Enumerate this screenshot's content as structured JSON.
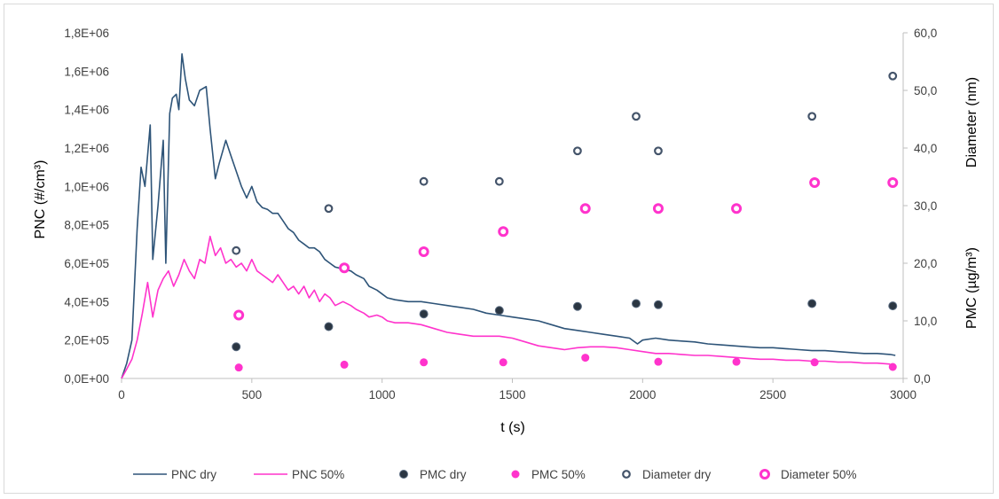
{
  "chart_data": {
    "type": "line",
    "xlabel": "t (s)",
    "ylabel": "PNC (#/cm³)",
    "y2label_top": "Diameter (nm)",
    "y2label_bottom": "PMC (µg/m³)",
    "xlim": [
      0,
      3000
    ],
    "ylim": [
      0,
      1800000
    ],
    "y2lim": [
      0,
      60
    ],
    "x_ticks": [
      "0",
      "500",
      "1000",
      "1500",
      "2000",
      "2500",
      "3000"
    ],
    "y_ticks": [
      "0,0E+00",
      "2,0E+05",
      "4,0E+05",
      "6,0E+05",
      "8,0E+05",
      "1,0E+06",
      "1,2E+06",
      "1,4E+06",
      "1,6E+06",
      "1,8E+06"
    ],
    "y2_ticks": [
      "0,0",
      "10,0",
      "20,0",
      "30,0",
      "40,0",
      "50,0",
      "60,0"
    ],
    "grid": false,
    "legend_position": "bottom",
    "colors": {
      "pnc_dry": "#2e5478",
      "pnc_50": "#ff33cc",
      "pmc_dry_fill": "#2b3642",
      "pmc_50_fill": "#ff33cc",
      "diam_dry_stroke": "#44546a",
      "diam_50_stroke": "#ff33cc"
    },
    "series": [
      {
        "name": "PNC dry",
        "kind": "line",
        "axis": "left",
        "points": [
          [
            0,
            0
          ],
          [
            20,
            80000
          ],
          [
            40,
            200000
          ],
          [
            60,
            780000
          ],
          [
            75,
            1100000
          ],
          [
            90,
            1000000
          ],
          [
            110,
            1320000
          ],
          [
            120,
            620000
          ],
          [
            140,
            900000
          ],
          [
            160,
            1240000
          ],
          [
            170,
            600000
          ],
          [
            185,
            1380000
          ],
          [
            195,
            1460000
          ],
          [
            210,
            1480000
          ],
          [
            220,
            1400000
          ],
          [
            232,
            1690000
          ],
          [
            245,
            1560000
          ],
          [
            260,
            1450000
          ],
          [
            280,
            1420000
          ],
          [
            300,
            1500000
          ],
          [
            325,
            1520000
          ],
          [
            340,
            1300000
          ],
          [
            360,
            1040000
          ],
          [
            375,
            1120000
          ],
          [
            400,
            1240000
          ],
          [
            420,
            1160000
          ],
          [
            440,
            1080000
          ],
          [
            460,
            1000000
          ],
          [
            480,
            940000
          ],
          [
            500,
            1000000
          ],
          [
            520,
            920000
          ],
          [
            540,
            890000
          ],
          [
            560,
            880000
          ],
          [
            580,
            860000
          ],
          [
            600,
            860000
          ],
          [
            620,
            820000
          ],
          [
            640,
            780000
          ],
          [
            660,
            760000
          ],
          [
            680,
            720000
          ],
          [
            700,
            700000
          ],
          [
            720,
            680000
          ],
          [
            740,
            680000
          ],
          [
            760,
            660000
          ],
          [
            780,
            620000
          ],
          [
            800,
            600000
          ],
          [
            820,
            580000
          ],
          [
            850,
            570000
          ],
          [
            880,
            560000
          ],
          [
            900,
            540000
          ],
          [
            930,
            520000
          ],
          [
            950,
            480000
          ],
          [
            980,
            460000
          ],
          [
            1000,
            440000
          ],
          [
            1020,
            420000
          ],
          [
            1050,
            410000
          ],
          [
            1100,
            400000
          ],
          [
            1150,
            400000
          ],
          [
            1200,
            390000
          ],
          [
            1250,
            380000
          ],
          [
            1300,
            370000
          ],
          [
            1350,
            360000
          ],
          [
            1400,
            340000
          ],
          [
            1450,
            330000
          ],
          [
            1500,
            320000
          ],
          [
            1550,
            310000
          ],
          [
            1600,
            300000
          ],
          [
            1650,
            280000
          ],
          [
            1700,
            260000
          ],
          [
            1750,
            250000
          ],
          [
            1800,
            240000
          ],
          [
            1850,
            230000
          ],
          [
            1900,
            220000
          ],
          [
            1950,
            210000
          ],
          [
            1980,
            180000
          ],
          [
            2000,
            200000
          ],
          [
            2050,
            210000
          ],
          [
            2100,
            200000
          ],
          [
            2150,
            195000
          ],
          [
            2200,
            190000
          ],
          [
            2250,
            180000
          ],
          [
            2300,
            175000
          ],
          [
            2350,
            170000
          ],
          [
            2400,
            165000
          ],
          [
            2450,
            160000
          ],
          [
            2500,
            160000
          ],
          [
            2550,
            155000
          ],
          [
            2600,
            150000
          ],
          [
            2650,
            145000
          ],
          [
            2700,
            145000
          ],
          [
            2750,
            140000
          ],
          [
            2800,
            135000
          ],
          [
            2850,
            130000
          ],
          [
            2900,
            130000
          ],
          [
            2950,
            125000
          ],
          [
            2970,
            120000
          ]
        ]
      },
      {
        "name": "PNC 50%",
        "kind": "line",
        "axis": "left",
        "points": [
          [
            0,
            0
          ],
          [
            20,
            50000
          ],
          [
            40,
            100000
          ],
          [
            60,
            200000
          ],
          [
            80,
            340000
          ],
          [
            100,
            500000
          ],
          [
            120,
            320000
          ],
          [
            140,
            460000
          ],
          [
            160,
            520000
          ],
          [
            180,
            560000
          ],
          [
            200,
            480000
          ],
          [
            220,
            540000
          ],
          [
            240,
            620000
          ],
          [
            260,
            560000
          ],
          [
            280,
            520000
          ],
          [
            300,
            620000
          ],
          [
            320,
            600000
          ],
          [
            340,
            740000
          ],
          [
            360,
            640000
          ],
          [
            380,
            680000
          ],
          [
            400,
            600000
          ],
          [
            420,
            620000
          ],
          [
            440,
            580000
          ],
          [
            460,
            600000
          ],
          [
            480,
            560000
          ],
          [
            500,
            620000
          ],
          [
            520,
            560000
          ],
          [
            540,
            540000
          ],
          [
            560,
            520000
          ],
          [
            580,
            500000
          ],
          [
            600,
            540000
          ],
          [
            620,
            500000
          ],
          [
            640,
            460000
          ],
          [
            660,
            480000
          ],
          [
            680,
            440000
          ],
          [
            700,
            480000
          ],
          [
            720,
            420000
          ],
          [
            740,
            460000
          ],
          [
            760,
            400000
          ],
          [
            780,
            440000
          ],
          [
            800,
            420000
          ],
          [
            820,
            380000
          ],
          [
            850,
            400000
          ],
          [
            880,
            380000
          ],
          [
            900,
            360000
          ],
          [
            930,
            340000
          ],
          [
            950,
            320000
          ],
          [
            980,
            330000
          ],
          [
            1000,
            320000
          ],
          [
            1020,
            300000
          ],
          [
            1050,
            290000
          ],
          [
            1100,
            290000
          ],
          [
            1150,
            280000
          ],
          [
            1200,
            260000
          ],
          [
            1250,
            240000
          ],
          [
            1300,
            230000
          ],
          [
            1350,
            220000
          ],
          [
            1400,
            220000
          ],
          [
            1450,
            220000
          ],
          [
            1500,
            210000
          ],
          [
            1550,
            190000
          ],
          [
            1600,
            170000
          ],
          [
            1650,
            160000
          ],
          [
            1700,
            150000
          ],
          [
            1750,
            160000
          ],
          [
            1800,
            165000
          ],
          [
            1850,
            165000
          ],
          [
            1900,
            160000
          ],
          [
            1950,
            150000
          ],
          [
            2000,
            140000
          ],
          [
            2050,
            130000
          ],
          [
            2100,
            130000
          ],
          [
            2150,
            125000
          ],
          [
            2200,
            120000
          ],
          [
            2250,
            120000
          ],
          [
            2300,
            115000
          ],
          [
            2350,
            110000
          ],
          [
            2400,
            105000
          ],
          [
            2450,
            100000
          ],
          [
            2500,
            100000
          ],
          [
            2550,
            95000
          ],
          [
            2600,
            95000
          ],
          [
            2650,
            90000
          ],
          [
            2700,
            90000
          ],
          [
            2750,
            85000
          ],
          [
            2800,
            85000
          ],
          [
            2850,
            80000
          ],
          [
            2900,
            80000
          ],
          [
            2950,
            75000
          ]
        ]
      },
      {
        "name": "PMC dry",
        "kind": "scatter",
        "axis": "right",
        "points": [
          [
            440,
            5.5
          ],
          [
            795,
            9
          ],
          [
            1160,
            11.2
          ],
          [
            1450,
            11.8
          ],
          [
            1750,
            12.5
          ],
          [
            1975,
            13
          ],
          [
            2060,
            12.8
          ],
          [
            2650,
            13
          ],
          [
            2960,
            12.6
          ]
        ]
      },
      {
        "name": "PMC 50%",
        "kind": "scatter",
        "axis": "right",
        "points": [
          [
            450,
            1.9
          ],
          [
            855,
            2.4
          ],
          [
            1160,
            2.8
          ],
          [
            1465,
            2.8
          ],
          [
            1780,
            3.6
          ],
          [
            2060,
            2.9
          ],
          [
            2360,
            2.9
          ],
          [
            2660,
            2.8
          ],
          [
            2960,
            2
          ]
        ]
      },
      {
        "name": "Diameter dry",
        "kind": "scatter",
        "axis": "right",
        "points": [
          [
            440,
            22.2
          ],
          [
            795,
            29.5
          ],
          [
            1160,
            34.2
          ],
          [
            1450,
            34.2
          ],
          [
            1750,
            39.5
          ],
          [
            1975,
            45.5
          ],
          [
            2060,
            39.5
          ],
          [
            2650,
            45.5
          ],
          [
            2960,
            52.5
          ]
        ]
      },
      {
        "name": "Diameter 50%",
        "kind": "scatter",
        "axis": "right",
        "points": [
          [
            450,
            11
          ],
          [
            855,
            19.2
          ],
          [
            1160,
            22
          ],
          [
            1465,
            25.5
          ],
          [
            1780,
            29.5
          ],
          [
            2060,
            29.5
          ],
          [
            2360,
            29.5
          ],
          [
            2660,
            34
          ],
          [
            2960,
            34
          ]
        ]
      }
    ]
  }
}
